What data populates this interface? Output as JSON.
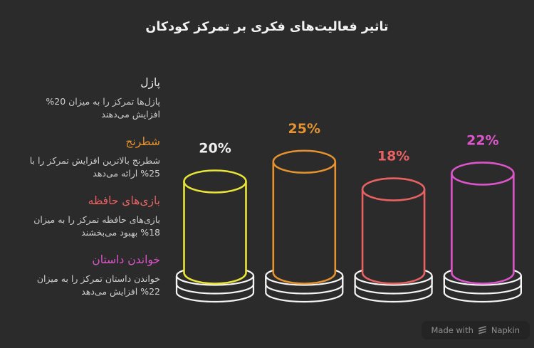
{
  "title": "تاثیر فعالیت‌های فکری بر تمرکز کودکان",
  "legend": {
    "sections": [
      {
        "heading": "پازل",
        "heading_color": "#ededed",
        "body": "پازل‌ها تمرکز را به میزان 20% افزایش می‌دهند"
      },
      {
        "heading": "شطرنج",
        "heading_color": "#e5922f",
        "body": "شطرنج بالاترین افزایش تمرکز را با 25% ارائه می‌دهد"
      },
      {
        "heading": "بازی‌های حافظه",
        "heading_color": "#e96262",
        "body": "بازی‌های حافظه تمرکز را به میزان 18% بهبود می‌بخشند"
      },
      {
        "heading": "خواندن داستان",
        "heading_color": "#dd55cb",
        "body": "خواندن داستان تمرکز را به میزان 22% افزایش می‌دهد"
      }
    ]
  },
  "chart_data": {
    "type": "bar",
    "subtype": "3d-outline-cylinders-on-pedestals",
    "title": "تاثیر فعالیت‌های فکری بر تمرکز کودکان",
    "categories": [
      "پازل",
      "شطرنج",
      "بازی‌های حافظه",
      "خواندن داستان"
    ],
    "values": [
      20,
      25,
      18,
      22
    ],
    "labels": [
      "20%",
      "25%",
      "18%",
      "22%"
    ],
    "colors": [
      "#e9e436",
      "#e5922f",
      "#e96262",
      "#dd55cb"
    ],
    "label_colors": [
      "#f0f0f0",
      "#e5922f",
      "#e96262",
      "#dd55cb"
    ],
    "base_color": "#f5f5f5",
    "ylim": [
      0,
      28
    ],
    "grid": false,
    "legend_position": "left",
    "xlabel": "",
    "ylabel": ""
  },
  "footer": {
    "made_with": "Made with",
    "brand": "Napkin",
    "logo": "napkin-logo-icon",
    "text_color": "#8e8e8e"
  },
  "theme": {
    "background": "#2b2b2b",
    "title_color": "#f2f2f2",
    "body_text_color": "#cdcdcd"
  }
}
